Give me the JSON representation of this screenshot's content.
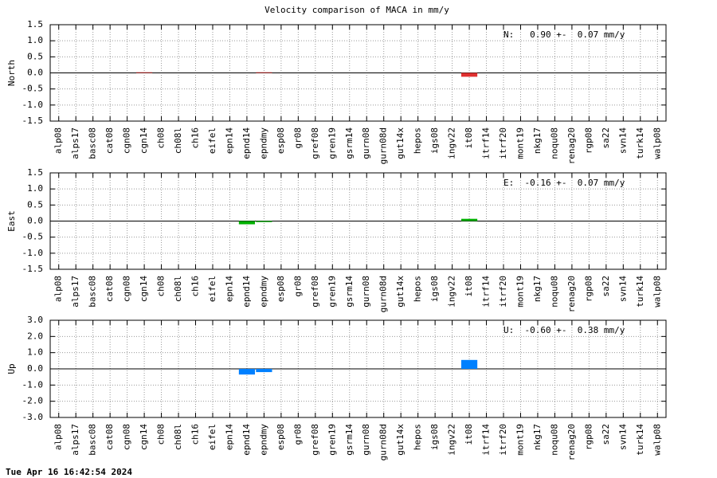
{
  "title": "Velocity comparison of MACA in mm/y",
  "timestamp": "Tue Apr 16 16:42:54 2024",
  "chart_data": [
    {
      "type": "bar",
      "ylabel": "North",
      "annotation": "N:   0.90 +-  0.07 mm/y",
      "color": "#e03030",
      "grid": true,
      "categories": [
        "alp08",
        "alps17",
        "basc08",
        "cat08",
        "cgn08",
        "cgn14",
        "ch08",
        "ch08l",
        "ch16",
        "eifel",
        "epn14",
        "epnd14",
        "epndmy",
        "esp08",
        "gr08",
        "gref08",
        "gren19",
        "gsrm14",
        "gurn08",
        "gurn08d",
        "gut14x",
        "hepos",
        "igs08",
        "ingv22",
        "it08",
        "itrf14",
        "itrf20",
        "mont19",
        "nkg17",
        "noqu08",
        "renag20",
        "rgp08",
        "sa22",
        "svn14",
        "turk14",
        "walp08"
      ],
      "values": [
        0,
        0,
        0,
        0,
        0,
        0.02,
        0,
        0,
        0,
        0,
        0,
        0,
        0.02,
        0,
        0,
        0,
        0,
        0,
        0,
        0,
        0,
        0,
        0,
        0,
        -0.12,
        0,
        0,
        0,
        0,
        0,
        0,
        0,
        0,
        0,
        0,
        0
      ],
      "ylim": [
        -1.5,
        1.5
      ],
      "yticks": [
        -1.5,
        {
          "value": -1,
          "label": "-1.0"
        },
        -0.5,
        {
          "value": 0,
          "label": "0.0"
        },
        0.5,
        {
          "value": 1,
          "label": "1.0"
        },
        1.5
      ]
    },
    {
      "type": "bar",
      "ylabel": "East",
      "annotation": "E:  -0.16 +-  0.07 mm/y",
      "color": "#00b000",
      "grid": true,
      "categories": [
        "alp08",
        "alps17",
        "basc08",
        "cat08",
        "cgn08",
        "cgn14",
        "ch08",
        "ch08l",
        "ch16",
        "eifel",
        "epn14",
        "epnd14",
        "epndmy",
        "esp08",
        "gr08",
        "gref08",
        "gren19",
        "gsrm14",
        "gurn08",
        "gurn08d",
        "gut14x",
        "hepos",
        "igs08",
        "ingv22",
        "it08",
        "itrf14",
        "itrf20",
        "mont19",
        "nkg17",
        "noqu08",
        "renag20",
        "rgp08",
        "sa22",
        "svn14",
        "turk14",
        "walp08"
      ],
      "values": [
        0,
        0,
        0,
        0,
        0,
        0,
        0,
        0,
        0,
        0,
        0,
        -0.1,
        -0.03,
        0,
        0,
        0,
        0,
        0,
        0,
        0,
        0,
        0,
        0,
        0,
        0.07,
        0,
        0,
        0,
        0,
        0,
        0,
        0,
        0,
        0,
        0,
        0
      ],
      "ylim": [
        -1.5,
        1.5
      ],
      "yticks": [
        -1.5,
        {
          "value": -1,
          "label": "-1.0"
        },
        -0.5,
        {
          "value": 0,
          "label": "0.0"
        },
        0.5,
        {
          "value": 1,
          "label": "1.0"
        },
        1.5
      ]
    },
    {
      "type": "bar",
      "ylabel": "Up",
      "annotation": "U:  -0.60 +-  0.38 mm/y",
      "color": "#0080ff",
      "grid": true,
      "categories": [
        "alp08",
        "alps17",
        "basc08",
        "cat08",
        "cgn08",
        "cgn14",
        "ch08",
        "ch08l",
        "ch16",
        "eifel",
        "epn14",
        "epnd14",
        "epndmy",
        "esp08",
        "gr08",
        "gref08",
        "gren19",
        "gsrm14",
        "gurn08",
        "gurn08d",
        "gut14x",
        "hepos",
        "igs08",
        "ingv22",
        "it08",
        "itrf14",
        "itrf20",
        "mont19",
        "nkg17",
        "noqu08",
        "renag20",
        "rgp08",
        "sa22",
        "svn14",
        "turk14",
        "walp08"
      ],
      "values": [
        0,
        0,
        0,
        0,
        0,
        0,
        0,
        0,
        0,
        0,
        0,
        -0.35,
        -0.2,
        0,
        0,
        0,
        0,
        0,
        0,
        0,
        0,
        0,
        0,
        0,
        0.55,
        0,
        0,
        0,
        0,
        0,
        0,
        0,
        0,
        0,
        0,
        0
      ],
      "ylim": [
        -3,
        3
      ],
      "yticks": [
        {
          "value": -3,
          "label": "-3.0"
        },
        {
          "value": -2,
          "label": "-2.0"
        },
        {
          "value": -1,
          "label": "-1.0"
        },
        {
          "value": 0,
          "label": "0.0"
        },
        {
          "value": 1,
          "label": "1.0"
        },
        {
          "value": 2,
          "label": "2.0"
        },
        {
          "value": 3,
          "label": "3.0"
        }
      ]
    }
  ]
}
